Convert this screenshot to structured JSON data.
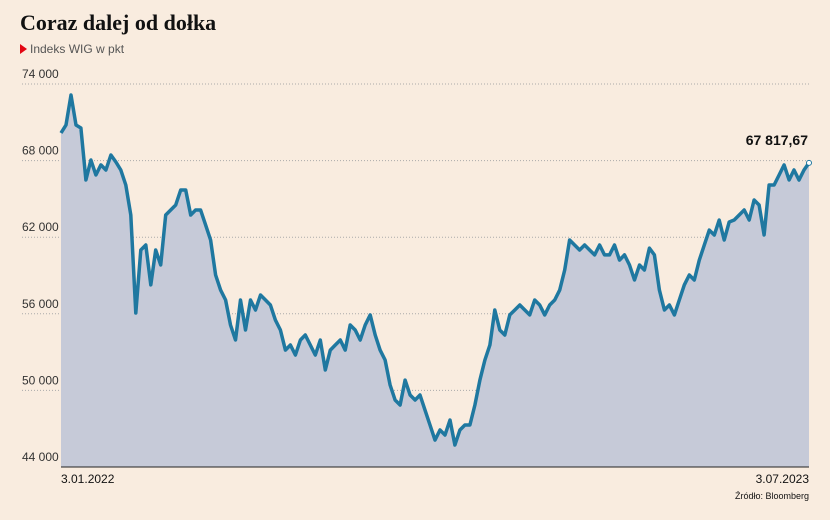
{
  "chart_data": {
    "type": "line",
    "title": "Coraz dalej od dołka",
    "subtitle": "Indeks WIG w pkt",
    "source": "Źródło: Bloomberg",
    "annotation": "67 817,67",
    "categories": [
      "3.01.2022",
      null,
      null,
      null,
      null,
      null,
      null,
      null,
      null,
      null,
      null,
      null,
      null,
      null,
      null,
      null,
      null,
      null,
      null,
      null,
      null,
      null,
      null,
      null,
      null,
      null,
      null,
      null,
      null,
      null,
      null,
      null,
      null,
      null,
      null,
      null,
      null,
      null,
      null,
      null,
      null,
      null,
      null,
      null,
      null,
      null,
      null,
      null,
      null,
      null,
      null,
      null,
      null,
      null,
      null,
      null,
      null,
      null,
      null,
      null,
      null,
      null,
      null,
      null,
      null,
      null,
      null,
      null,
      null,
      null,
      null,
      null,
      null,
      null,
      null,
      null,
      null,
      null,
      null,
      null,
      null,
      null,
      null,
      null,
      null,
      null,
      null,
      null,
      null,
      null,
      null,
      null,
      null,
      null,
      null,
      null,
      null,
      null,
      null,
      null,
      null,
      null,
      null,
      null,
      null,
      null,
      null,
      null,
      null,
      null,
      null,
      null,
      null,
      null,
      null,
      null,
      null,
      null,
      null,
      null,
      null,
      null,
      null,
      null,
      null,
      null,
      null,
      null,
      null,
      null,
      null,
      null,
      null,
      null,
      null,
      null,
      null,
      null,
      null,
      null,
      null,
      null,
      null,
      null,
      null,
      null,
      null,
      null,
      null,
      null,
      "3.07.2023"
    ],
    "series": [
      {
        "name": "WIG",
        "color": "#1f78a0",
        "fill": "#c6cad8",
        "values": [
          70160,
          70790,
          73140,
          70790,
          70550,
          66480,
          68050,
          66870,
          67660,
          67260,
          68440,
          67890,
          67260,
          66090,
          63740,
          56060,
          61000,
          61390,
          58260,
          61000,
          59820,
          63740,
          64130,
          64520,
          65700,
          65700,
          63740,
          64130,
          64130,
          62960,
          61780,
          59040,
          57860,
          57080,
          55120,
          53950,
          57080,
          54730,
          57080,
          56300,
          57470,
          57080,
          56690,
          55510,
          54730,
          53160,
          53560,
          52770,
          53950,
          54340,
          53560,
          52770,
          53950,
          51600,
          53160,
          53560,
          53950,
          53160,
          55120,
          54730,
          53950,
          55120,
          55910,
          54340,
          53160,
          52380,
          50420,
          49250,
          48860,
          50810,
          49640,
          49250,
          49640,
          48460,
          47290,
          46110,
          46900,
          46510,
          47680,
          45720,
          46900,
          47290,
          47290,
          48860,
          50810,
          52380,
          53560,
          56300,
          54730,
          54340,
          55910,
          56300,
          56690,
          56300,
          55910,
          57080,
          56690,
          55910,
          56690,
          57080,
          57860,
          59430,
          61780,
          61390,
          61000,
          61390,
          61000,
          60610,
          61390,
          60610,
          60610,
          61390,
          60210,
          60610,
          59820,
          58650,
          59820,
          59430,
          61150,
          60610,
          57860,
          56300,
          56690,
          55910,
          57080,
          58260,
          59040,
          58650,
          60210,
          61390,
          62560,
          62170,
          63350,
          61780,
          63190,
          63350,
          63740,
          64130,
          63350,
          64910,
          64520,
          62170,
          66090,
          66090,
          66870,
          67660,
          66480,
          67260,
          66480,
          67260,
          67817.67
        ]
      }
    ],
    "ylim": [
      44000,
      74000
    ],
    "yticks": [
      {
        "value": 44000,
        "label": "44 000"
      },
      {
        "value": 50000,
        "label": "50 000"
      },
      {
        "value": 56000,
        "label": "56 000"
      },
      {
        "value": 62000,
        "label": "62 000"
      },
      {
        "value": 68000,
        "label": "68 000"
      },
      {
        "value": 74000,
        "label": "74 000"
      }
    ],
    "grid": true
  }
}
